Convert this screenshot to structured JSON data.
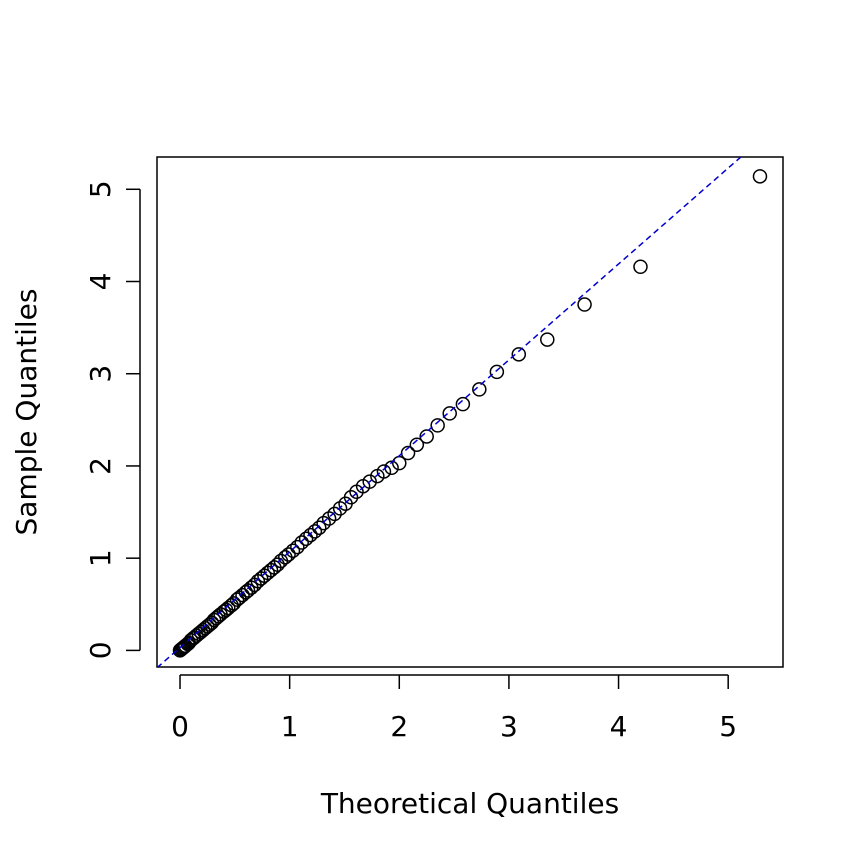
{
  "chart_data": {
    "type": "scatter",
    "xlabel": "Theoretical Quantiles",
    "ylabel": "Sample Quantiles",
    "x": [
      5.29,
      4.2,
      3.69,
      3.35,
      3.09,
      2.89,
      2.73,
      2.58,
      2.46,
      2.35,
      2.25,
      2.16,
      2.08,
      2.0,
      1.93,
      1.86,
      1.8,
      1.73,
      1.67,
      1.61,
      1.56,
      1.51,
      1.46,
      1.41,
      1.36,
      1.31,
      1.27,
      1.23,
      1.19,
      1.15,
      1.11,
      1.07,
      1.03,
      0.99,
      0.96,
      0.92,
      0.89,
      0.86,
      0.83,
      0.8,
      0.77,
      0.74,
      0.71,
      0.68,
      0.65,
      0.62,
      0.6,
      0.57,
      0.54,
      0.52,
      0.49,
      0.47,
      0.44,
      0.42,
      0.4,
      0.37,
      0.35,
      0.33,
      0.31,
      0.29,
      0.27,
      0.25,
      0.23,
      0.21,
      0.19,
      0.17,
      0.15,
      0.13,
      0.12,
      0.1,
      0.08,
      0.07,
      0.05,
      0.04,
      0.03,
      0.02,
      0.01,
      0.0
    ],
    "values": [
      5.14,
      4.16,
      3.75,
      3.37,
      3.21,
      3.02,
      2.83,
      2.67,
      2.57,
      2.44,
      2.32,
      2.23,
      2.14,
      2.03,
      1.98,
      1.94,
      1.89,
      1.83,
      1.78,
      1.72,
      1.66,
      1.59,
      1.54,
      1.48,
      1.43,
      1.38,
      1.33,
      1.29,
      1.25,
      1.21,
      1.17,
      1.12,
      1.08,
      1.04,
      1.01,
      0.97,
      0.93,
      0.9,
      0.87,
      0.84,
      0.81,
      0.78,
      0.75,
      0.71,
      0.68,
      0.65,
      0.63,
      0.6,
      0.57,
      0.55,
      0.51,
      0.49,
      0.46,
      0.44,
      0.42,
      0.39,
      0.37,
      0.35,
      0.33,
      0.3,
      0.28,
      0.26,
      0.24,
      0.22,
      0.2,
      0.18,
      0.16,
      0.14,
      0.13,
      0.11,
      0.08,
      0.07,
      0.05,
      0.04,
      0.03,
      0.02,
      0.01,
      0.0
    ],
    "color": "#000000",
    "ref_line": {
      "intercept": 0.03,
      "slope": 1.04,
      "color": "#0000cd"
    },
    "xlim": [
      -0.21,
      5.5
    ],
    "ylim": [
      -0.18,
      5.35
    ],
    "xticks": [
      0,
      1,
      2,
      3,
      4,
      5
    ],
    "yticks": [
      0,
      1,
      2,
      3,
      4,
      5
    ]
  }
}
